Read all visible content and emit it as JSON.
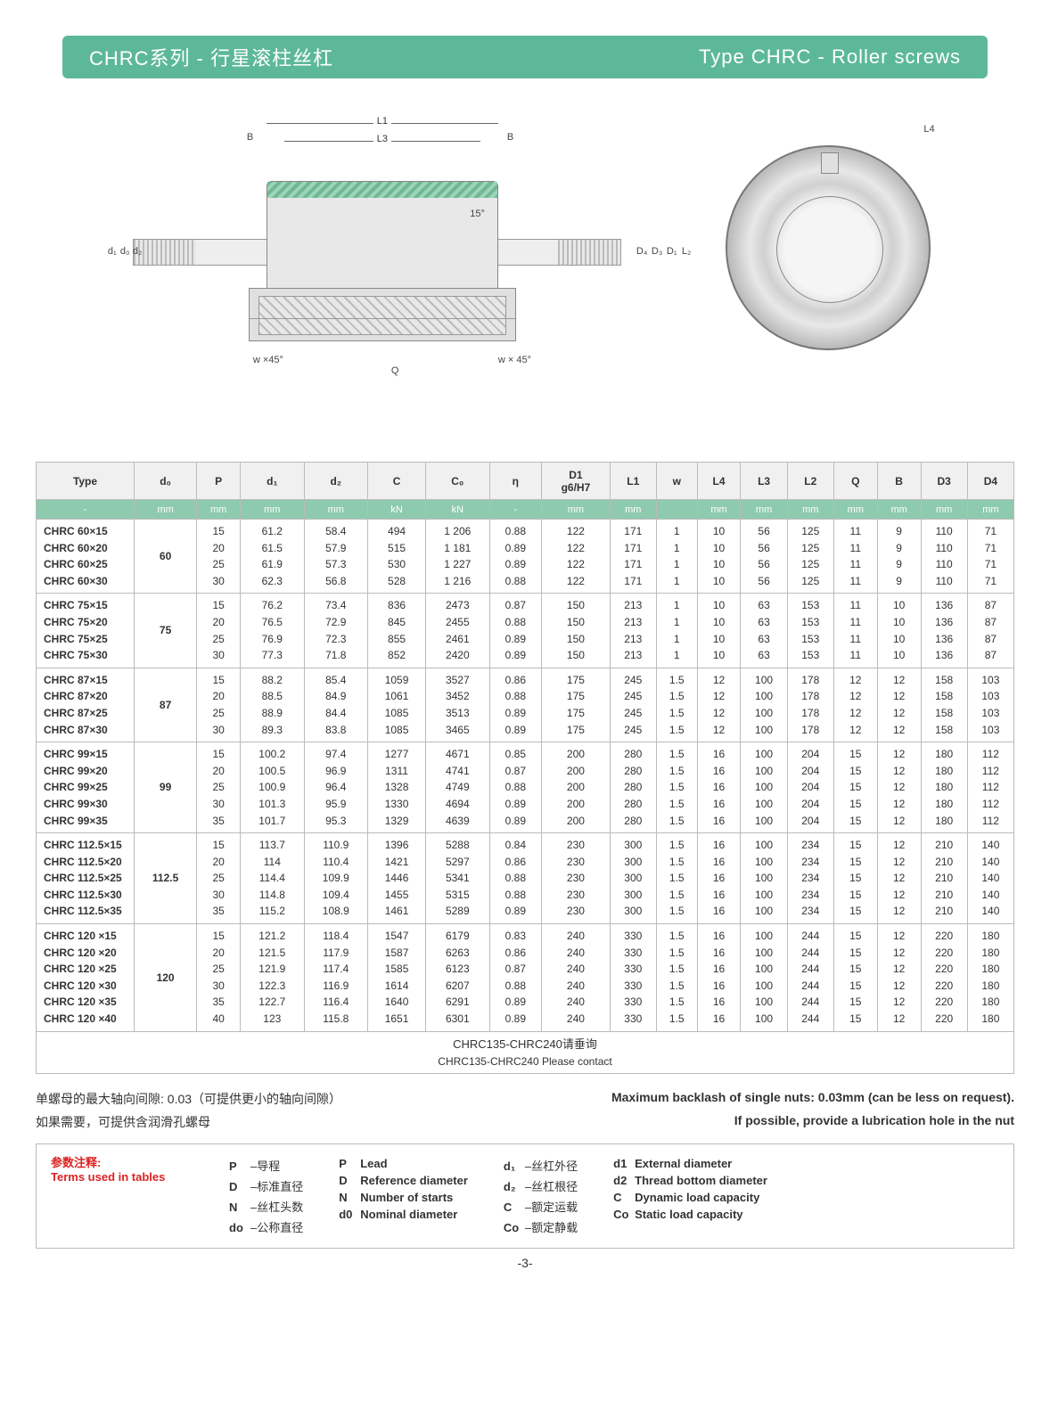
{
  "title": {
    "cn": "CHRC系列 - 行星滚柱丝杠",
    "en": "Type CHRC - Roller screws"
  },
  "diagram_labels": {
    "B": "B",
    "L1": "L1",
    "L3": "L3",
    "L4": "L4",
    "d1": "d₁",
    "d0": "d₀",
    "d2": "d₂",
    "D4": "D₄",
    "D3": "D₃",
    "D1": "D₁",
    "L2": "L₂",
    "Q": "Q",
    "w45l": "w ×45°",
    "w45r": "w × 45°",
    "angle15": "15°"
  },
  "columns": [
    "Type",
    "d₀",
    "P",
    "d₁",
    "d₂",
    "C",
    "C₀",
    "η",
    "D1\ng6/H7",
    "L1",
    "w",
    "L4",
    "L3",
    "L2",
    "Q",
    "B",
    "D3",
    "D4"
  ],
  "units": [
    "-",
    "mm",
    "mm",
    "mm",
    "mm",
    "kN",
    "kN",
    "-",
    "mm",
    "mm",
    "",
    "mm",
    "mm",
    "mm",
    "mm",
    "mm",
    "mm",
    "mm"
  ],
  "groups": [
    {
      "types": [
        "CHRC 60×15",
        "CHRC 60×20",
        "CHRC 60×25",
        "CHRC 60×30"
      ],
      "d0": "60",
      "rows": [
        [
          "15",
          "61.2",
          "58.4",
          "494",
          "1 206",
          "0.88",
          "122",
          "171",
          "1",
          "10",
          "56",
          "125",
          "11",
          "9",
          "110",
          "71"
        ],
        [
          "20",
          "61.5",
          "57.9",
          "515",
          "1 181",
          "0.89",
          "122",
          "171",
          "1",
          "10",
          "56",
          "125",
          "11",
          "9",
          "110",
          "71"
        ],
        [
          "25",
          "61.9",
          "57.3",
          "530",
          "1 227",
          "0.89",
          "122",
          "171",
          "1",
          "10",
          "56",
          "125",
          "11",
          "9",
          "110",
          "71"
        ],
        [
          "30",
          "62.3",
          "56.8",
          "528",
          "1 216",
          "0.88",
          "122",
          "171",
          "1",
          "10",
          "56",
          "125",
          "11",
          "9",
          "110",
          "71"
        ]
      ]
    },
    {
      "types": [
        "CHRC 75×15",
        "CHRC 75×20",
        "CHRC 75×25",
        "CHRC 75×30"
      ],
      "d0": "75",
      "rows": [
        [
          "15",
          "76.2",
          "73.4",
          "836",
          "2473",
          "0.87",
          "150",
          "213",
          "1",
          "10",
          "63",
          "153",
          "11",
          "10",
          "136",
          "87"
        ],
        [
          "20",
          "76.5",
          "72.9",
          "845",
          "2455",
          "0.88",
          "150",
          "213",
          "1",
          "10",
          "63",
          "153",
          "11",
          "10",
          "136",
          "87"
        ],
        [
          "25",
          "76.9",
          "72.3",
          "855",
          "2461",
          "0.89",
          "150",
          "213",
          "1",
          "10",
          "63",
          "153",
          "11",
          "10",
          "136",
          "87"
        ],
        [
          "30",
          "77.3",
          "71.8",
          "852",
          "2420",
          "0.89",
          "150",
          "213",
          "1",
          "10",
          "63",
          "153",
          "11",
          "10",
          "136",
          "87"
        ]
      ]
    },
    {
      "types": [
        "CHRC 87×15",
        "CHRC 87×20",
        "CHRC 87×25",
        "CHRC 87×30"
      ],
      "d0": "87",
      "rows": [
        [
          "15",
          "88.2",
          "85.4",
          "1059",
          "3527",
          "0.86",
          "175",
          "245",
          "1.5",
          "12",
          "100",
          "178",
          "12",
          "12",
          "158",
          "103"
        ],
        [
          "20",
          "88.5",
          "84.9",
          "1061",
          "3452",
          "0.88",
          "175",
          "245",
          "1.5",
          "12",
          "100",
          "178",
          "12",
          "12",
          "158",
          "103"
        ],
        [
          "25",
          "88.9",
          "84.4",
          "1085",
          "3513",
          "0.89",
          "175",
          "245",
          "1.5",
          "12",
          "100",
          "178",
          "12",
          "12",
          "158",
          "103"
        ],
        [
          "30",
          "89.3",
          "83.8",
          "1085",
          "3465",
          "0.89",
          "175",
          "245",
          "1.5",
          "12",
          "100",
          "178",
          "12",
          "12",
          "158",
          "103"
        ]
      ]
    },
    {
      "types": [
        "CHRC 99×15",
        "CHRC 99×20",
        "CHRC 99×25",
        "CHRC 99×30",
        "CHRC 99×35"
      ],
      "d0": "99",
      "rows": [
        [
          "15",
          "100.2",
          "97.4",
          "1277",
          "4671",
          "0.85",
          "200",
          "280",
          "1.5",
          "16",
          "100",
          "204",
          "15",
          "12",
          "180",
          "112"
        ],
        [
          "20",
          "100.5",
          "96.9",
          "1311",
          "4741",
          "0.87",
          "200",
          "280",
          "1.5",
          "16",
          "100",
          "204",
          "15",
          "12",
          "180",
          "112"
        ],
        [
          "25",
          "100.9",
          "96.4",
          "1328",
          "4749",
          "0.88",
          "200",
          "280",
          "1.5",
          "16",
          "100",
          "204",
          "15",
          "12",
          "180",
          "112"
        ],
        [
          "30",
          "101.3",
          "95.9",
          "1330",
          "4694",
          "0.89",
          "200",
          "280",
          "1.5",
          "16",
          "100",
          "204",
          "15",
          "12",
          "180",
          "112"
        ],
        [
          "35",
          "101.7",
          "95.3",
          "1329",
          "4639",
          "0.89",
          "200",
          "280",
          "1.5",
          "16",
          "100",
          "204",
          "15",
          "12",
          "180",
          "112"
        ]
      ]
    },
    {
      "types": [
        "CHRC 112.5×15",
        "CHRC 112.5×20",
        "CHRC 112.5×25",
        "CHRC 112.5×30",
        "CHRC 112.5×35"
      ],
      "d0": "112.5",
      "rows": [
        [
          "15",
          "113.7",
          "110.9",
          "1396",
          "5288",
          "0.84",
          "230",
          "300",
          "1.5",
          "16",
          "100",
          "234",
          "15",
          "12",
          "210",
          "140"
        ],
        [
          "20",
          "114",
          "110.4",
          "1421",
          "5297",
          "0.86",
          "230",
          "300",
          "1.5",
          "16",
          "100",
          "234",
          "15",
          "12",
          "210",
          "140"
        ],
        [
          "25",
          "114.4",
          "109.9",
          "1446",
          "5341",
          "0.88",
          "230",
          "300",
          "1.5",
          "16",
          "100",
          "234",
          "15",
          "12",
          "210",
          "140"
        ],
        [
          "30",
          "114.8",
          "109.4",
          "1455",
          "5315",
          "0.88",
          "230",
          "300",
          "1.5",
          "16",
          "100",
          "234",
          "15",
          "12",
          "210",
          "140"
        ],
        [
          "35",
          "115.2",
          "108.9",
          "1461",
          "5289",
          "0.89",
          "230",
          "300",
          "1.5",
          "16",
          "100",
          "234",
          "15",
          "12",
          "210",
          "140"
        ]
      ]
    },
    {
      "types": [
        "CHRC 120 ×15",
        "CHRC 120 ×20",
        "CHRC 120 ×25",
        "CHRC 120 ×30",
        "CHRC 120 ×35",
        "CHRC 120 ×40"
      ],
      "d0": "120",
      "rows": [
        [
          "15",
          "121.2",
          "118.4",
          "1547",
          "6179",
          "0.83",
          "240",
          "330",
          "1.5",
          "16",
          "100",
          "244",
          "15",
          "12",
          "220",
          "180"
        ],
        [
          "20",
          "121.5",
          "117.9",
          "1587",
          "6263",
          "0.86",
          "240",
          "330",
          "1.5",
          "16",
          "100",
          "244",
          "15",
          "12",
          "220",
          "180"
        ],
        [
          "25",
          "121.9",
          "117.4",
          "1585",
          "6123",
          "0.87",
          "240",
          "330",
          "1.5",
          "16",
          "100",
          "244",
          "15",
          "12",
          "220",
          "180"
        ],
        [
          "30",
          "122.3",
          "116.9",
          "1614",
          "6207",
          "0.88",
          "240",
          "330",
          "1.5",
          "16",
          "100",
          "244",
          "15",
          "12",
          "220",
          "180"
        ],
        [
          "35",
          "122.7",
          "116.4",
          "1640",
          "6291",
          "0.89",
          "240",
          "330",
          "1.5",
          "16",
          "100",
          "244",
          "15",
          "12",
          "220",
          "180"
        ],
        [
          "40",
          "123",
          "115.8",
          "1651",
          "6301",
          "0.89",
          "240",
          "330",
          "1.5",
          "16",
          "100",
          "244",
          "15",
          "12",
          "220",
          "180"
        ]
      ]
    }
  ],
  "contact": {
    "cn": "CHRC135-CHRC240请垂询",
    "en": "CHRC135-CHRC240 Please contact"
  },
  "notes": {
    "l1cn": "单螺母的最大轴向间隙: 0.03（可提供更小的轴向间隙）",
    "l1en": "Maximum backlash of single nuts: 0.03mm (can be less on request).",
    "l2cn": "如果需要，可提供含润滑孔螺母",
    "l2en": "If possible, provide a lubrication hole in the nut"
  },
  "terms": {
    "title_cn": "参数注释:",
    "title_en": "Terms used in tables",
    "cn": [
      [
        "P",
        "导程"
      ],
      [
        "D",
        "标准直径"
      ],
      [
        "N",
        "丝杠头数"
      ],
      [
        "do",
        "公称直径"
      ]
    ],
    "en1": [
      [
        "P",
        "Lead"
      ],
      [
        "D",
        "Reference diameter"
      ],
      [
        "N",
        "Number of starts"
      ],
      [
        "d0",
        "Nominal diameter"
      ]
    ],
    "cn2": [
      [
        "d₁",
        "丝杠外径"
      ],
      [
        "d₂",
        "丝杠根径"
      ],
      [
        "C",
        "额定运载"
      ],
      [
        "Co",
        "额定静载"
      ]
    ],
    "en2": [
      [
        "d1",
        "External diameter"
      ],
      [
        "d2",
        "Thread bottom diameter"
      ],
      [
        "C",
        "Dynamic load capacity"
      ],
      [
        "Co",
        "Static load capacity"
      ]
    ]
  },
  "page": "-3-"
}
